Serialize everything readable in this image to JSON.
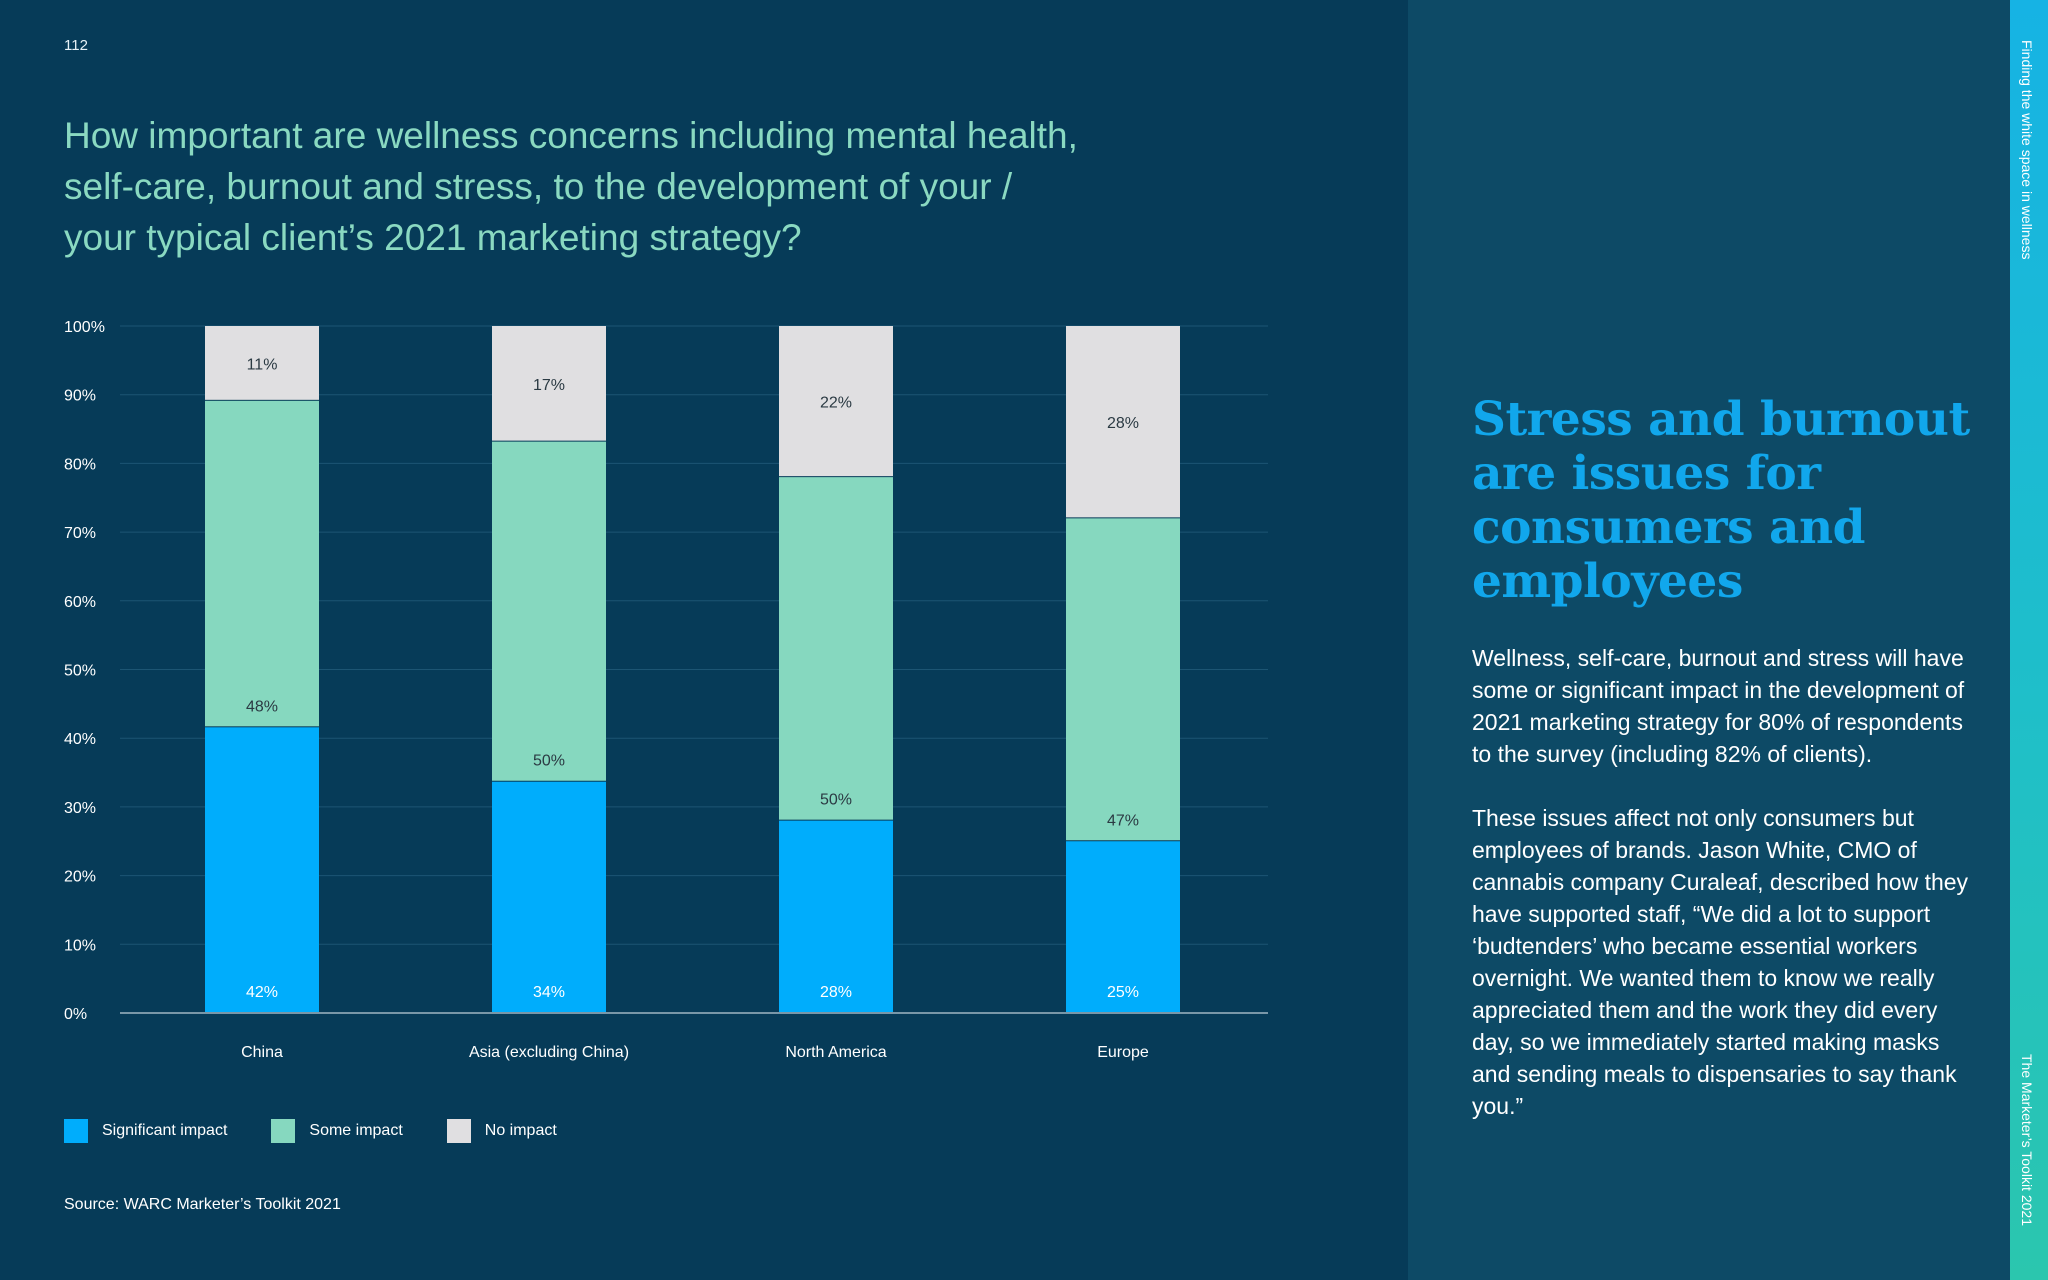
{
  "page": {
    "number": "112",
    "sidebar_top_text": "Finding the white space in wellness",
    "sidebar_bottom_text": "The Marketer’s Toolkit 2021"
  },
  "question": "How important are wellness concerns including mental health, self-care, burnout and stress, to the development of your / your typical client’s 2021 marketing strategy?",
  "headline": "Stress and burnout are issues for consumers and employees",
  "body": {
    "paragraph1": "Wellness, self-care, burnout and stress will have some or significant impact in the development of 2021 marketing strategy for 80% of respondents to the survey (including 82%  of clients).",
    "paragraph2": "These issues affect not only consumers but employees of brands. Jason White, CMO of cannabis company Curaleaf, described how they have supported staff, “We did a lot to support ‘budtenders’ who became essential workers overnight. We wanted them to know we really appreciated them and the work they did every day, so we immediately started making masks and sending meals to dispensaries to say thank you.”"
  },
  "legend": {
    "significant": "Significant impact",
    "some": "Some impact",
    "none": "No impact"
  },
  "source": "Source: WARC Marketer’s Toolkit 2021",
  "colors": {
    "significant": "#00adfc",
    "some": "#86d8bf",
    "none": "#e0dfe1"
  },
  "chart_data": {
    "type": "bar",
    "stacked": true,
    "categories": [
      "China",
      "Asia (excluding China)",
      "North America",
      "Europe"
    ],
    "series": [
      {
        "name": "Significant impact",
        "values": [
          42,
          34,
          28,
          25
        ],
        "labels": [
          "42%",
          "34%",
          "28%",
          "25%"
        ]
      },
      {
        "name": "Some impact",
        "values": [
          48,
          50,
          50,
          47
        ],
        "labels": [
          "48%",
          "50%",
          "50%",
          "47%"
        ]
      },
      {
        "name": "No impact",
        "values": [
          11,
          17,
          22,
          28
        ],
        "labels": [
          "11%",
          "17%",
          "22%",
          "28%"
        ]
      }
    ],
    "ylim": [
      0,
      100
    ],
    "yticks": [
      "0%",
      "10%",
      "20%",
      "30%",
      "40%",
      "50%",
      "60%",
      "70%",
      "80%",
      "90%",
      "100%"
    ],
    "grid": true,
    "legend_position": "bottom-left"
  }
}
